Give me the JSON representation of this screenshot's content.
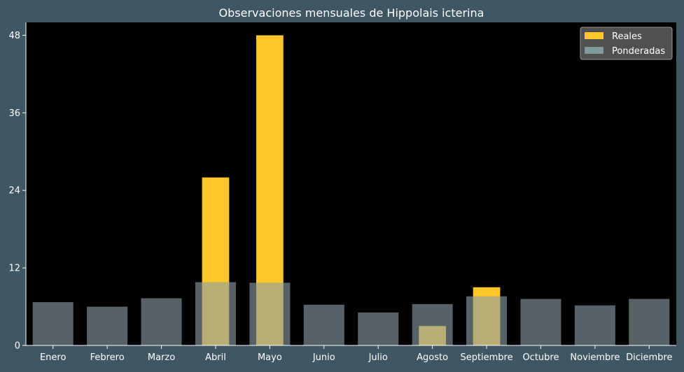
{
  "chart_data": {
    "type": "bar",
    "title": "Observaciones mensuales de Hippolais icterina",
    "xlabel": "",
    "ylabel": "",
    "categories": [
      "Enero",
      "Febrero",
      "Marzo",
      "Abril",
      "Mayo",
      "Junio",
      "Julio",
      "Agosto",
      "Septiembre",
      "Octubre",
      "Noviembre",
      "Diciembre"
    ],
    "series": [
      {
        "name": "Reales",
        "values": [
          0,
          0,
          0,
          26,
          48,
          0,
          0,
          3,
          9,
          0,
          0,
          0
        ],
        "color": "#ffc62a"
      },
      {
        "name": "Ponderadas",
        "values": [
          6.7,
          6.0,
          7.3,
          9.8,
          9.7,
          6.3,
          5.1,
          6.4,
          7.6,
          7.2,
          6.2,
          7.2
        ],
        "color": "#8a9ea3"
      }
    ],
    "ylim": [
      0,
      50
    ],
    "yticks": [
      0,
      12,
      24,
      36,
      48
    ],
    "grid": false,
    "legend_position": "top-right",
    "colors": {
      "figure_background": "#3f5663",
      "plot_background": "#000000",
      "text": "#ffffff",
      "legend_background": "#505050"
    }
  }
}
